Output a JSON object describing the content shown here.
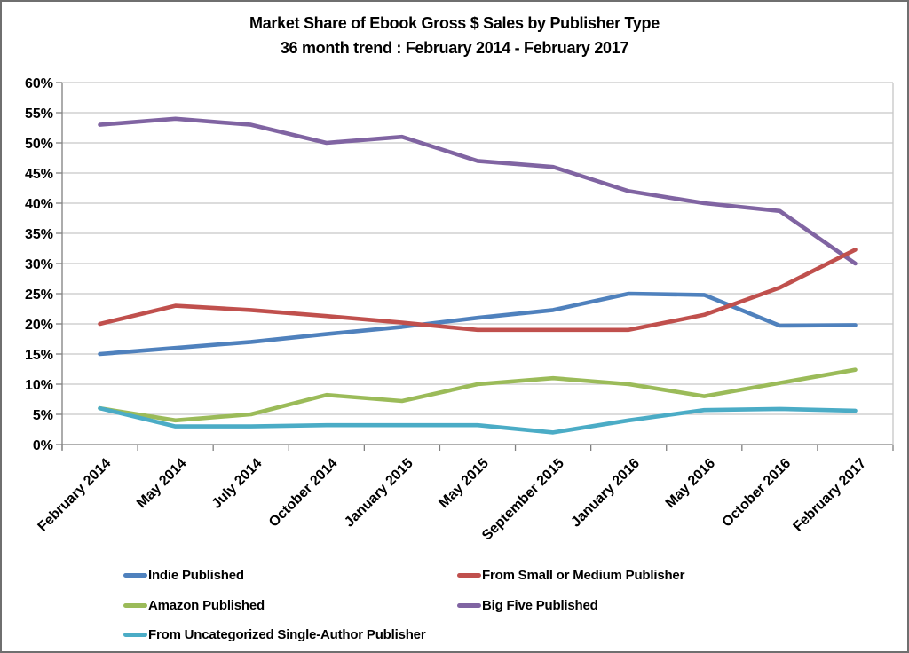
{
  "title": {
    "line1": "Market Share of Ebook Gross $ Sales by Publisher Type",
    "line2": "36 month trend : February 2014 - February 2017"
  },
  "chart_data": {
    "type": "line",
    "categories": [
      "February 2014",
      "May 2014",
      "July 2014",
      "October 2014",
      "January 2015",
      "May 2015",
      "September 2015",
      "January 2016",
      "May 2016",
      "October 2016",
      "February 2017"
    ],
    "series": [
      {
        "name": "Indie Published",
        "color": "#4F81BD",
        "values": [
          15,
          16,
          17,
          18.3,
          19.5,
          21,
          22.3,
          25,
          24.8,
          19.7,
          19.8
        ]
      },
      {
        "name": "From Small or Medium Publisher",
        "color": "#C0504D",
        "values": [
          20,
          23,
          22.3,
          21.3,
          20.2,
          19,
          19,
          19,
          21.5,
          26,
          32.3
        ]
      },
      {
        "name": "Amazon Published",
        "color": "#9BBB59",
        "values": [
          6,
          4,
          5,
          8.2,
          7.2,
          10,
          11,
          10,
          8,
          10.2,
          12.4
        ]
      },
      {
        "name": "Big Five Published",
        "color": "#8064A2",
        "values": [
          53,
          54,
          53,
          50,
          51,
          47,
          46,
          42,
          40,
          38.7,
          30
        ]
      },
      {
        "name": "From Uncategorized Single-Author Publisher",
        "color": "#4BACC6",
        "values": [
          6,
          3,
          3,
          3.2,
          3.2,
          3.2,
          2,
          4,
          5.7,
          5.9,
          5.6
        ]
      }
    ],
    "ylim": [
      0,
      60
    ],
    "y_tick_step": 5,
    "y_tick_labels": [
      "0%",
      "5%",
      "10%",
      "15%",
      "20%",
      "25%",
      "30%",
      "35%",
      "40%",
      "45%",
      "50%",
      "55%",
      "60%"
    ],
    "xlabel": "",
    "ylabel": "",
    "grid": "horizontal",
    "gridline_color": "#C6C6C6",
    "axis_color": "#808080",
    "legend_position": "bottom"
  }
}
